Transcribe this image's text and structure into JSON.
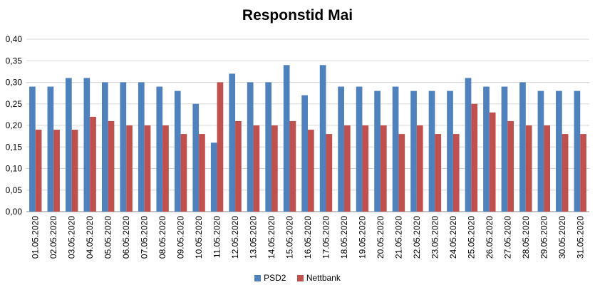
{
  "chart_data": {
    "type": "bar",
    "title": "Responstid Mai",
    "xlabel": "",
    "ylabel": "",
    "ylim": [
      0,
      0.4
    ],
    "yticks": [
      "0,00",
      "0,05",
      "0,10",
      "0,15",
      "0,20",
      "0,25",
      "0,30",
      "0,35",
      "0,40"
    ],
    "grid": true,
    "legend_position": "bottom",
    "categories": [
      "01.05.2020",
      "02.05.2020",
      "03.05.2020",
      "04.05.2020",
      "05.05.2020",
      "06.05.2020",
      "07.05.2020",
      "08.05.2020",
      "09.05.2020",
      "10.05.2020",
      "11.05.2020",
      "12.05.2020",
      "13.05.2020",
      "14.05.2020",
      "15.05.2020",
      "16.05.2020",
      "17.05.2020",
      "18.05.2020",
      "19.05.2020",
      "20.05.2020",
      "21.05.2020",
      "22.05.2020",
      "23.05.2020",
      "24.05.2020",
      "25.05.2020",
      "26.05.2020",
      "27.05.2020",
      "28.05.2020",
      "29.05.2020",
      "30.05.2020",
      "31.05.2020"
    ],
    "series": [
      {
        "name": "PSD2",
        "color": "#4f81bd",
        "values": [
          0.29,
          0.29,
          0.31,
          0.31,
          0.3,
          0.3,
          0.3,
          0.29,
          0.28,
          0.25,
          0.16,
          0.32,
          0.3,
          0.3,
          0.34,
          0.27,
          0.34,
          0.29,
          0.29,
          0.28,
          0.29,
          0.28,
          0.28,
          0.28,
          0.31,
          0.29,
          0.29,
          0.3,
          0.28,
          0.28,
          0.28
        ]
      },
      {
        "name": "Nettbank",
        "color": "#c0504d",
        "values": [
          0.19,
          0.19,
          0.19,
          0.22,
          0.21,
          0.2,
          0.2,
          0.2,
          0.18,
          0.18,
          0.3,
          0.21,
          0.2,
          0.2,
          0.21,
          0.19,
          0.18,
          0.2,
          0.2,
          0.2,
          0.18,
          0.2,
          0.18,
          0.18,
          0.25,
          0.23,
          0.21,
          0.2,
          0.2,
          0.18,
          0.18
        ]
      }
    ]
  }
}
